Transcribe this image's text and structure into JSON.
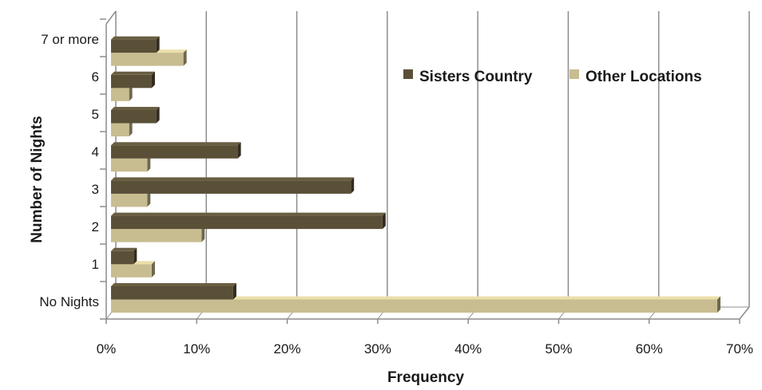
{
  "chart_data": {
    "type": "bar",
    "orientation": "horizontal",
    "style": "3d-clustered",
    "xlabel": "Frequency",
    "ylabel": "Number of Nights",
    "xlim": [
      0,
      70
    ],
    "x_tick_labels": [
      "0%",
      "10%",
      "20%",
      "30%",
      "40%",
      "50%",
      "60%",
      "70%"
    ],
    "categories": [
      "No Nights",
      "1",
      "2",
      "3",
      "4",
      "5",
      "6",
      "7 or more"
    ],
    "series": [
      {
        "name": "Sisters Country",
        "color": "#5a5038",
        "values": [
          13.5,
          2.5,
          30.0,
          26.5,
          14.0,
          5.0,
          4.5,
          5.0
        ]
      },
      {
        "name": "Other Locations",
        "color": "#c8bd91",
        "values": [
          67.0,
          4.5,
          10.0,
          4.0,
          4.0,
          2.0,
          2.0,
          8.0
        ]
      }
    ],
    "grid": true,
    "legend": "top-right"
  }
}
